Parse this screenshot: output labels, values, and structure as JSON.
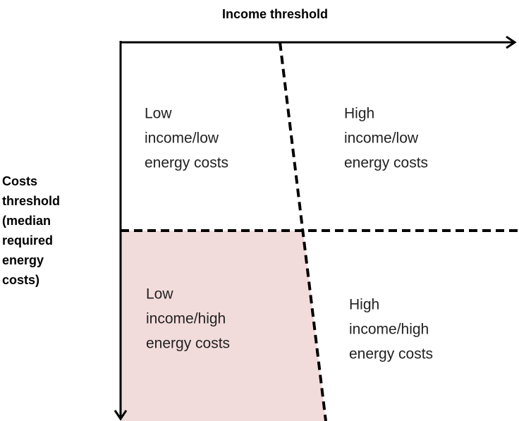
{
  "axes": {
    "x_label": "Income threshold",
    "y_label_lines": [
      "Costs",
      "threshold",
      "(median",
      "required",
      "energy",
      "costs)"
    ]
  },
  "quadrants": [
    {
      "lines": [
        "Low",
        "income/low",
        "energy costs"
      ]
    },
    {
      "lines": [
        "High",
        "income/low",
        "energy costs"
      ]
    },
    {
      "lines": [
        "Low",
        "income/high",
        "energy costs"
      ]
    },
    {
      "lines": [
        "High",
        "income/high",
        "energy costs"
      ]
    }
  ]
}
